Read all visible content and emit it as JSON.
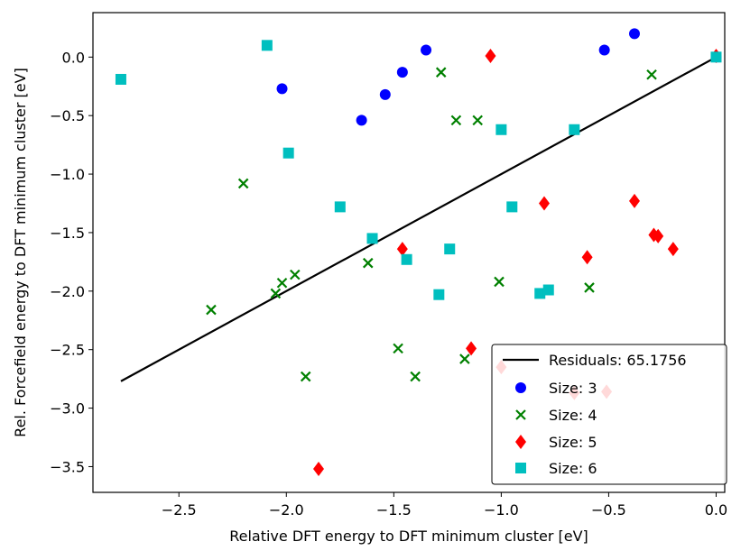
{
  "chart_data": {
    "type": "scatter",
    "xlabel": "Relative DFT energy to DFT minimum cluster [eV]",
    "ylabel": "Rel. Forcefield energy to DFT minimum cluster [eV]",
    "xlim": [
      -2.9,
      0.04
    ],
    "ylim": [
      -3.72,
      0.38
    ],
    "xticks": [
      -2.5,
      -2.0,
      -1.5,
      -1.0,
      -0.5,
      0.0
    ],
    "xtick_labels": [
      "−2.5",
      "−2.0",
      "−1.5",
      "−1.0",
      "−0.5",
      "0.0"
    ],
    "yticks": [
      0.0,
      -0.5,
      -1.0,
      -1.5,
      -2.0,
      -2.5,
      -3.0,
      -3.5
    ],
    "ytick_labels": [
      "0.0",
      "−0.5",
      "−1.0",
      "−1.5",
      "−2.0",
      "−2.5",
      "−3.0",
      "−3.5"
    ],
    "legend_position": "bottom-right",
    "fit_line": {
      "name": "Residuals: 65.1756",
      "color": "#000000",
      "x": [
        -2.77,
        0.0
      ],
      "y": [
        -2.77,
        0.0
      ]
    },
    "series": [
      {
        "name": "Size: 3",
        "marker": "circle",
        "color": "#0000ff",
        "x": [
          -2.02,
          -1.65,
          -1.54,
          -1.46,
          -1.35,
          -0.52,
          -0.38,
          0.0
        ],
        "y": [
          -0.27,
          -0.54,
          -0.32,
          -0.13,
          0.06,
          0.06,
          0.2,
          0.0
        ]
      },
      {
        "name": "Size: 4",
        "marker": "x",
        "color": "#008000",
        "x": [
          -2.35,
          -2.2,
          -2.05,
          -2.02,
          -1.96,
          -1.91,
          -1.62,
          -1.48,
          -1.4,
          -1.28,
          -1.21,
          -1.17,
          -1.11,
          -1.01,
          -0.59,
          -0.3
        ],
        "y": [
          -2.16,
          -1.08,
          -2.02,
          -1.93,
          -1.86,
          -2.73,
          -1.76,
          -2.49,
          -2.73,
          -0.13,
          -0.54,
          -2.58,
          -0.54,
          -1.92,
          -1.97,
          -0.15
        ]
      },
      {
        "name": "Size: 5",
        "marker": "diamond",
        "color": "#ff0000",
        "x": [
          -1.85,
          -1.46,
          -1.14,
          -1.05,
          -1.0,
          -0.8,
          -0.66,
          -0.6,
          -0.51,
          -0.38,
          -0.29,
          -0.27,
          -0.2,
          0.0
        ],
        "y": [
          -3.52,
          -1.64,
          -2.49,
          0.01,
          -2.65,
          -1.25,
          -2.87,
          -1.71,
          -2.86,
          -1.23,
          -1.52,
          -1.53,
          -1.64,
          0.01
        ]
      },
      {
        "name": "Size: 6",
        "marker": "square",
        "color": "#00bfbf",
        "x": [
          -2.77,
          -2.09,
          -1.99,
          -1.75,
          -1.6,
          -1.44,
          -1.29,
          -1.24,
          -1.0,
          -0.95,
          -0.82,
          -0.78,
          -0.66,
          0.0
        ],
        "y": [
          -0.19,
          0.1,
          -0.82,
          -1.28,
          -1.55,
          -1.73,
          -2.03,
          -1.64,
          -0.62,
          -1.28,
          -2.02,
          -1.99,
          -0.62,
          0.0
        ]
      }
    ]
  }
}
